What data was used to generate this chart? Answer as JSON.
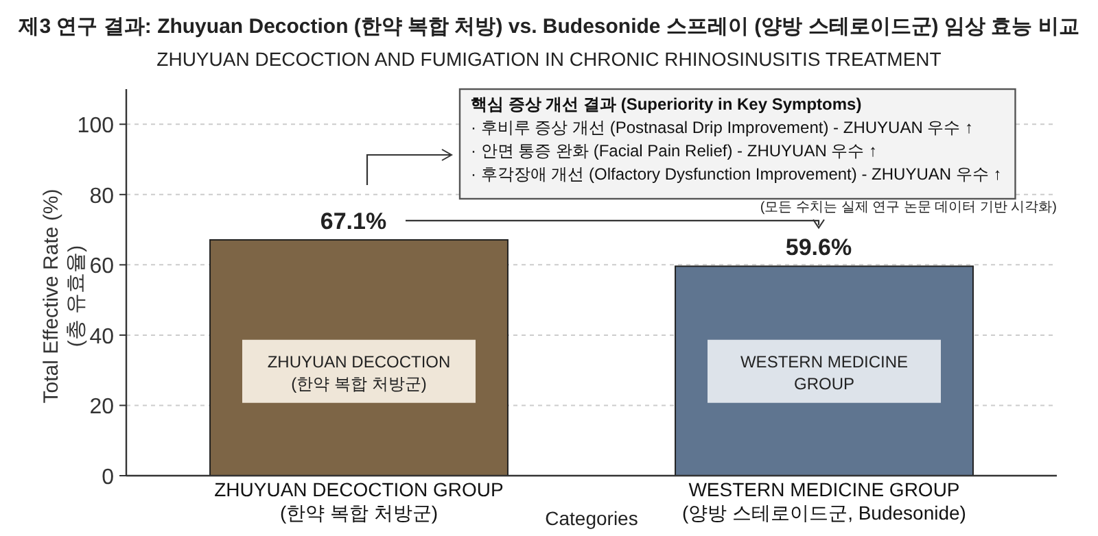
{
  "chart_data": {
    "type": "bar",
    "title": "제3 연구 결과: Zhuyuan Decoction (한약 복합 처방) vs. Budesonide 스프레이 (양방 스테로이드군) 임상 효능 비교",
    "subtitle": "ZHUYUAN DECOCTION AND FUMIGATION IN CHRONIC RHINOSINUSITIS TREATMENT",
    "xlabel": "Categories",
    "ylabel": "Total Effective Rate (%)\n(총 유효율)",
    "categories": [
      "ZHUYUAN DECOCTION GROUP\n(한약 복합 처방군)",
      "WESTERN MEDICINE GROUP\n(양방 스테로이드군, Budesonide)"
    ],
    "values": [
      67.1,
      59.6
    ],
    "colors": [
      "#7d6546",
      "#5f7590"
    ],
    "value_labels": [
      "67.1%",
      "59.6%"
    ],
    "ylim": [
      0,
      110
    ],
    "yticks": [
      0,
      20,
      40,
      60,
      80,
      100
    ],
    "grid": "y",
    "annotations": [
      "핵심 증상 개선 결과 (Superiority in Key Symptoms)\n· 후비루 증상 개선 (Postnasal Drip Improvement) - ZHUYUAN 우수 ↑\n· 안면 통증 완화 (Facial Pain Relief) - ZHUYUAN 우수 ↑\n· 후각장애 개선 (Olfactory Dysfunction Improvement) - ZHUYUAN 우수 ↑",
      "(모든 수치는 실제 연구 논문 데이터 기반 시각화)",
      "ZHUYUAN DECOCTION\n(한약 복합 처방군)",
      "WESTERN MEDICINE\nGROUP"
    ]
  }
}
